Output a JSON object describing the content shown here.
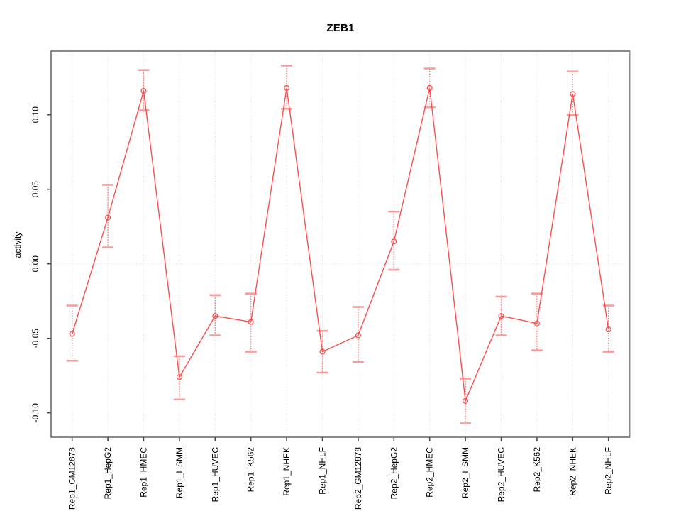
{
  "chart_data": {
    "type": "line",
    "title": "ZEB1",
    "xlabel": "",
    "ylabel": "activity",
    "legend": "none",
    "grid": {
      "vertical_per_category": true,
      "horizontal_at_zero": true
    },
    "categories": [
      "Rep1_GM12878",
      "Rep1_HepG2",
      "Rep1_HMEC",
      "Rep1_HSMM",
      "Rep1_HUVEC",
      "Rep1_K562",
      "Rep1_NHEK",
      "Rep1_NHLF",
      "Rep2_GM12878",
      "Rep2_HepG2",
      "Rep2_HMEC",
      "Rep2_HSMM",
      "Rep2_HUVEC",
      "Rep2_K562",
      "Rep2_NHEK",
      "Rep2_NHLF"
    ],
    "series": [
      {
        "name": "activity",
        "marker": "open-circle",
        "values": [
          -0.047,
          0.031,
          0.116,
          -0.076,
          -0.035,
          -0.039,
          0.118,
          -0.059,
          -0.048,
          0.015,
          0.118,
          -0.092,
          -0.035,
          -0.04,
          0.114,
          -0.044
        ],
        "ci_lower": [
          -0.065,
          0.011,
          0.103,
          -0.091,
          -0.048,
          -0.059,
          0.104,
          -0.073,
          -0.066,
          -0.004,
          0.105,
          -0.107,
          -0.048,
          -0.058,
          0.1,
          -0.059
        ],
        "ci_upper": [
          -0.028,
          0.053,
          0.13,
          -0.062,
          -0.021,
          -0.02,
          0.133,
          -0.045,
          -0.029,
          0.035,
          0.131,
          -0.077,
          -0.022,
          -0.02,
          0.129,
          -0.028
        ]
      }
    ],
    "yticks": [
      0.1,
      0.05,
      0.0,
      -0.05,
      -0.1
    ],
    "ytick_labels": [
      "0.10",
      "0.05",
      "0.00",
      "-0.05",
      "-0.10"
    ],
    "ylim": [
      -0.116,
      0.143
    ],
    "colors": {
      "line": "#ff4d4d",
      "marker": "#ff4d4d",
      "errorbar_line": "#ff6e6e",
      "errorbar_cap": "#ff9898",
      "grid": "#dcdcdc",
      "frame": "#8c8c8c",
      "tick": "#4d4d4d",
      "text": "#000000",
      "background": "#ffffff"
    }
  }
}
